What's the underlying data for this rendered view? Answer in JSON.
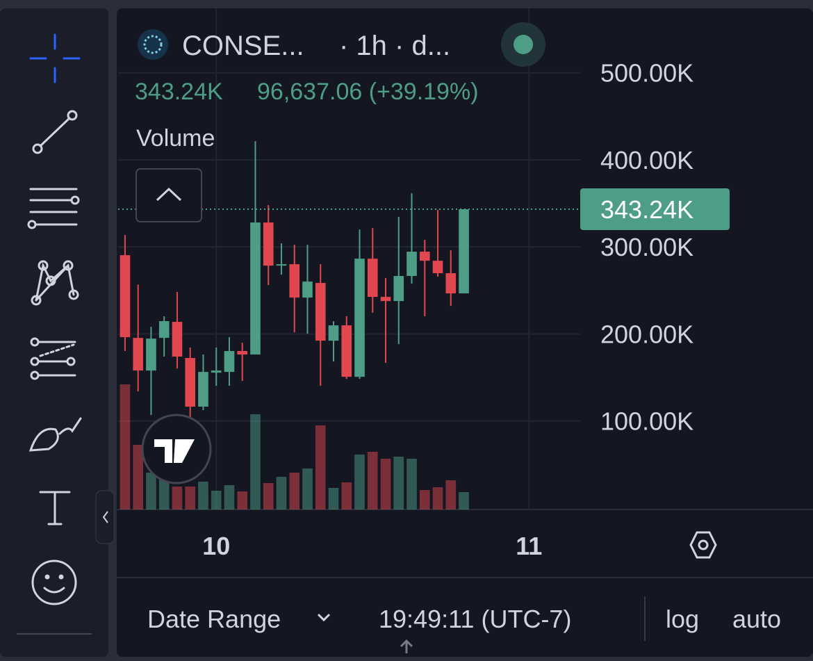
{
  "legend": {
    "symbol": "CONSE...",
    "interval": "· 1h · d...",
    "last": "343.24K",
    "change": "96,637.06 (+39.19%)",
    "study": "Volume"
  },
  "bottom_bar": {
    "date_range": "Date Range",
    "clock": "19:49:11 (UTC-7)",
    "log": "log",
    "auto": "auto"
  },
  "chart_data": {
    "type": "candlestick",
    "categories": [
      null,
      null,
      null,
      null,
      null,
      null,
      null,
      null,
      null,
      null,
      null,
      null,
      null,
      null,
      null,
      null,
      null,
      null,
      null,
      null,
      null,
      null,
      null,
      null,
      null,
      null,
      null
    ],
    "open": [
      290500,
      195500,
      158000,
      195500,
      213900,
      172400,
      116500,
      155600,
      156400,
      180400,
      176400,
      328000,
      278500,
      280100,
      241800,
      258600,
      192300,
      209900,
      150800,
      286500,
      242600,
      237800,
      266600,
      294500,
      284100,
      269800,
      246600
    ],
    "high": [
      313500,
      256700,
      208300,
      220300,
      248200,
      184400,
      176400,
      184400,
      196300,
      189900,
      421400,
      348000,
      304100,
      302500,
      302500,
      280100,
      214700,
      220300,
      320000,
      321600,
      264200,
      334400,
      361500,
      308100,
      342400,
      296100,
      343240
    ],
    "low": [
      180400,
      134100,
      106900,
      174000,
      160400,
      104500,
      112500,
      140500,
      140500,
      146000,
      176400,
      256200,
      268200,
      201900,
      200300,
      140500,
      168400,
      148400,
      148400,
      224300,
      166800,
      188300,
      257800,
      220300,
      265800,
      232200,
      246600
    ],
    "close": [
      196300,
      158000,
      194700,
      214700,
      174000,
      116500,
      156400,
      158000,
      180400,
      176400,
      328000,
      278500,
      280100,
      241800,
      260200,
      192300,
      209900,
      150800,
      286500,
      242600,
      237800,
      266600,
      294500,
      284100,
      269800,
      246600,
      343240
    ],
    "volume": [
      180,
      93,
      53,
      43,
      33,
      33,
      40,
      27,
      35,
      26,
      137,
      38,
      47,
      53,
      59,
      121,
      31,
      39,
      79,
      83,
      73,
      76,
      73,
      28,
      32,
      42,
      25
    ],
    "up_color": "#4e9d87",
    "down_color": "#e0474f",
    "ylim": [
      0,
      574000
    ],
    "yticks": [
      {
        "value": 100000,
        "label": "100.00K"
      },
      {
        "value": 200000,
        "label": "200.00K"
      },
      {
        "value": 300000,
        "label": "300.00K"
      },
      {
        "value": 400000,
        "label": "400.00K"
      },
      {
        "value": 500000,
        "label": "500.00K"
      }
    ],
    "xlim": [
      -0.53,
      34.93
    ],
    "xticks": [
      {
        "value": 7,
        "label": "10"
      },
      {
        "value": 31,
        "label": "11"
      }
    ],
    "last_price": {
      "value": 343240,
      "label": "343.24K"
    },
    "grid": true
  }
}
